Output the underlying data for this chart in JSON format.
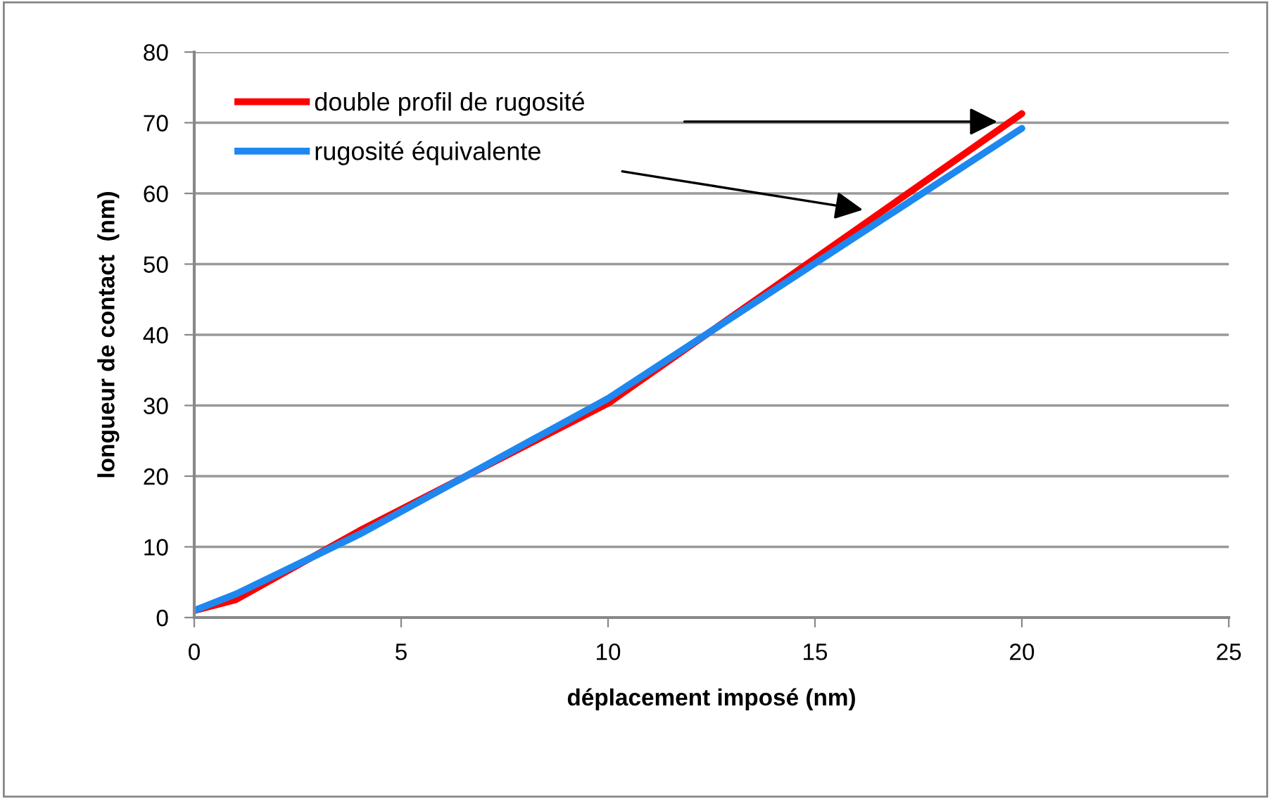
{
  "chart_data": {
    "type": "line",
    "xlabel": "déplacement imposé (nm)",
    "ylabel": "longueur de contact  (nm)",
    "xlim": [
      0,
      25
    ],
    "xticks": [
      0,
      5,
      10,
      15,
      20,
      25
    ],
    "ylim": [
      0,
      80
    ],
    "yticks": [
      0,
      10,
      20,
      30,
      40,
      50,
      60,
      70,
      80
    ],
    "grid": "y",
    "legend": "top left",
    "marker": "none",
    "line_style": "solid",
    "series": [
      {
        "name": "double profil de rugosité",
        "color": "#ff0000",
        "x": [
          0,
          1,
          4,
          10,
          20
        ],
        "values": [
          1,
          2.5,
          12.3,
          30.3,
          71.3
        ]
      },
      {
        "name": "rugosité équivalente",
        "color": "#1e88f0",
        "x": [
          0,
          1,
          4,
          10,
          20
        ],
        "values": [
          1,
          3.3,
          11.8,
          31,
          69.2
        ]
      }
    ]
  }
}
